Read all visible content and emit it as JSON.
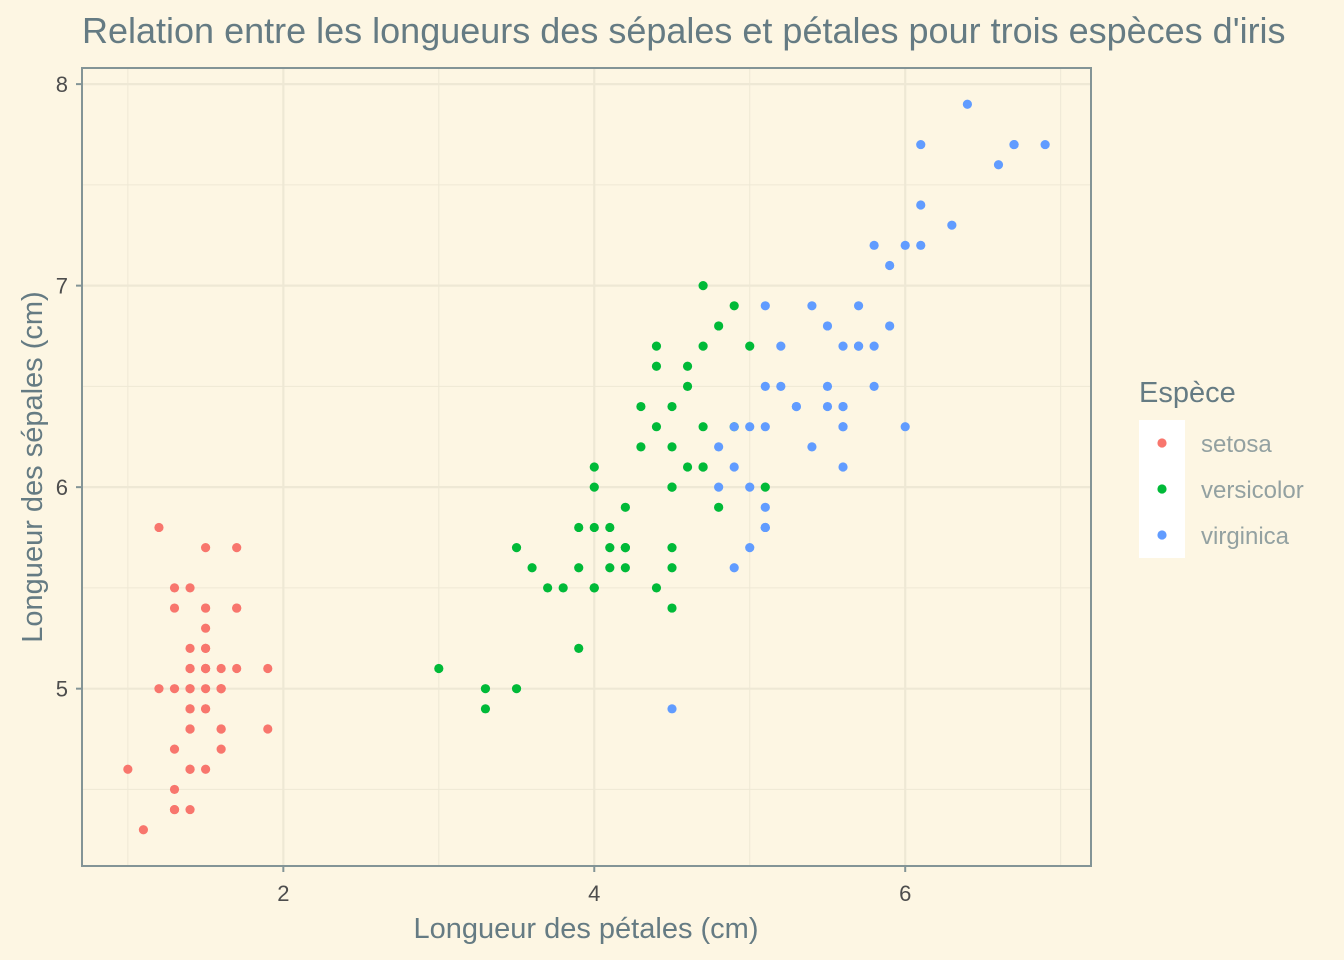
{
  "chart_data": {
    "type": "scatter",
    "title": "Relation entre les longueurs des sépales et pétales pour trois  espèces d'iris",
    "xlabel": "Longueur des pétales (cm)",
    "ylabel": "Longueur des sépales (cm)",
    "xlim": [
      0.705,
      7.195
    ],
    "ylim": [
      4.12,
      8.08
    ],
    "x_ticks": [
      2,
      4,
      6
    ],
    "y_ticks": [
      5,
      6,
      7,
      8
    ],
    "grid": true,
    "legend": {
      "title": "Espèce",
      "position": "right"
    },
    "series": [
      {
        "name": "setosa",
        "color": "#F8766D",
        "points": [
          [
            1.4,
            5.1
          ],
          [
            1.4,
            4.9
          ],
          [
            1.3,
            4.7
          ],
          [
            1.5,
            4.6
          ],
          [
            1.4,
            5.0
          ],
          [
            1.7,
            5.4
          ],
          [
            1.4,
            4.6
          ],
          [
            1.5,
            5.0
          ],
          [
            1.4,
            4.4
          ],
          [
            1.5,
            4.9
          ],
          [
            1.5,
            5.4
          ],
          [
            1.6,
            4.8
          ],
          [
            1.4,
            4.8
          ],
          [
            1.1,
            4.3
          ],
          [
            1.2,
            5.8
          ],
          [
            1.5,
            5.7
          ],
          [
            1.3,
            5.4
          ],
          [
            1.4,
            5.1
          ],
          [
            1.7,
            5.7
          ],
          [
            1.5,
            5.1
          ],
          [
            1.7,
            5.4
          ],
          [
            1.5,
            5.1
          ],
          [
            1.0,
            4.6
          ],
          [
            1.7,
            5.1
          ],
          [
            1.9,
            4.8
          ],
          [
            1.6,
            5.0
          ],
          [
            1.6,
            5.0
          ],
          [
            1.5,
            5.2
          ],
          [
            1.4,
            5.2
          ],
          [
            1.6,
            4.7
          ],
          [
            1.6,
            4.8
          ],
          [
            1.5,
            5.4
          ],
          [
            1.5,
            5.2
          ],
          [
            1.4,
            5.5
          ],
          [
            1.5,
            4.9
          ],
          [
            1.2,
            5.0
          ],
          [
            1.3,
            5.5
          ],
          [
            1.4,
            4.9
          ],
          [
            1.3,
            4.4
          ],
          [
            1.5,
            5.1
          ],
          [
            1.3,
            5.0
          ],
          [
            1.3,
            4.5
          ],
          [
            1.3,
            4.4
          ],
          [
            1.6,
            5.0
          ],
          [
            1.9,
            5.1
          ],
          [
            1.4,
            4.8
          ],
          [
            1.6,
            5.1
          ],
          [
            1.4,
            4.6
          ],
          [
            1.5,
            5.3
          ],
          [
            1.4,
            5.0
          ]
        ]
      },
      {
        "name": "versicolor",
        "color": "#00BA38",
        "points": [
          [
            4.7,
            7.0
          ],
          [
            4.5,
            6.4
          ],
          [
            4.9,
            6.9
          ],
          [
            4.0,
            5.5
          ],
          [
            4.6,
            6.5
          ],
          [
            4.5,
            5.7
          ],
          [
            4.7,
            6.3
          ],
          [
            3.3,
            4.9
          ],
          [
            4.6,
            6.6
          ],
          [
            3.9,
            5.2
          ],
          [
            3.5,
            5.0
          ],
          [
            4.2,
            5.9
          ],
          [
            4.0,
            6.0
          ],
          [
            4.7,
            6.1
          ],
          [
            3.6,
            5.6
          ],
          [
            4.4,
            6.7
          ],
          [
            4.5,
            5.6
          ],
          [
            4.1,
            5.8
          ],
          [
            4.5,
            6.2
          ],
          [
            3.9,
            5.6
          ],
          [
            4.8,
            5.9
          ],
          [
            4.0,
            6.1
          ],
          [
            4.9,
            6.3
          ],
          [
            4.7,
            6.1
          ],
          [
            4.3,
            6.4
          ],
          [
            4.4,
            6.6
          ],
          [
            4.8,
            6.8
          ],
          [
            5.0,
            6.7
          ],
          [
            4.5,
            6.0
          ],
          [
            3.5,
            5.7
          ],
          [
            3.8,
            5.5
          ],
          [
            3.7,
            5.5
          ],
          [
            3.9,
            5.8
          ],
          [
            5.1,
            6.0
          ],
          [
            4.5,
            5.4
          ],
          [
            4.5,
            6.0
          ],
          [
            4.7,
            6.7
          ],
          [
            4.4,
            6.3
          ],
          [
            4.1,
            5.6
          ],
          [
            4.0,
            5.5
          ],
          [
            4.4,
            5.5
          ],
          [
            4.6,
            6.1
          ],
          [
            4.0,
            5.8
          ],
          [
            3.3,
            5.0
          ],
          [
            4.2,
            5.6
          ],
          [
            4.2,
            5.7
          ],
          [
            4.2,
            5.7
          ],
          [
            4.3,
            6.2
          ],
          [
            3.0,
            5.1
          ],
          [
            4.1,
            5.7
          ]
        ]
      },
      {
        "name": "virginica",
        "color": "#619CFF",
        "points": [
          [
            6.0,
            6.3
          ],
          [
            5.1,
            5.8
          ],
          [
            5.9,
            7.1
          ],
          [
            5.6,
            6.3
          ],
          [
            5.8,
            6.5
          ],
          [
            6.6,
            7.6
          ],
          [
            4.5,
            4.9
          ],
          [
            6.3,
            7.3
          ],
          [
            5.8,
            6.7
          ],
          [
            6.1,
            7.2
          ],
          [
            5.1,
            6.5
          ],
          [
            5.3,
            6.4
          ],
          [
            5.5,
            6.8
          ],
          [
            5.0,
            5.7
          ],
          [
            5.1,
            5.8
          ],
          [
            5.3,
            6.4
          ],
          [
            5.5,
            6.5
          ],
          [
            6.7,
            7.7
          ],
          [
            6.9,
            7.7
          ],
          [
            5.0,
            6.0
          ],
          [
            5.7,
            6.9
          ],
          [
            4.9,
            5.6
          ],
          [
            6.7,
            7.7
          ],
          [
            4.9,
            6.3
          ],
          [
            5.7,
            6.7
          ],
          [
            6.0,
            7.2
          ],
          [
            4.8,
            6.2
          ],
          [
            4.9,
            6.1
          ],
          [
            5.6,
            6.4
          ],
          [
            5.8,
            7.2
          ],
          [
            6.1,
            7.4
          ],
          [
            6.4,
            7.9
          ],
          [
            5.6,
            6.4
          ],
          [
            5.1,
            6.3
          ],
          [
            5.6,
            6.1
          ],
          [
            6.1,
            7.7
          ],
          [
            5.6,
            6.3
          ],
          [
            5.5,
            6.4
          ],
          [
            4.8,
            6.0
          ],
          [
            5.4,
            6.9
          ],
          [
            5.6,
            6.7
          ],
          [
            5.1,
            6.9
          ],
          [
            5.1,
            5.8
          ],
          [
            5.9,
            6.8
          ],
          [
            5.7,
            6.7
          ],
          [
            5.2,
            6.7
          ],
          [
            5.0,
            6.3
          ],
          [
            5.2,
            6.5
          ],
          [
            5.4,
            6.2
          ],
          [
            5.1,
            5.9
          ]
        ]
      }
    ]
  }
}
